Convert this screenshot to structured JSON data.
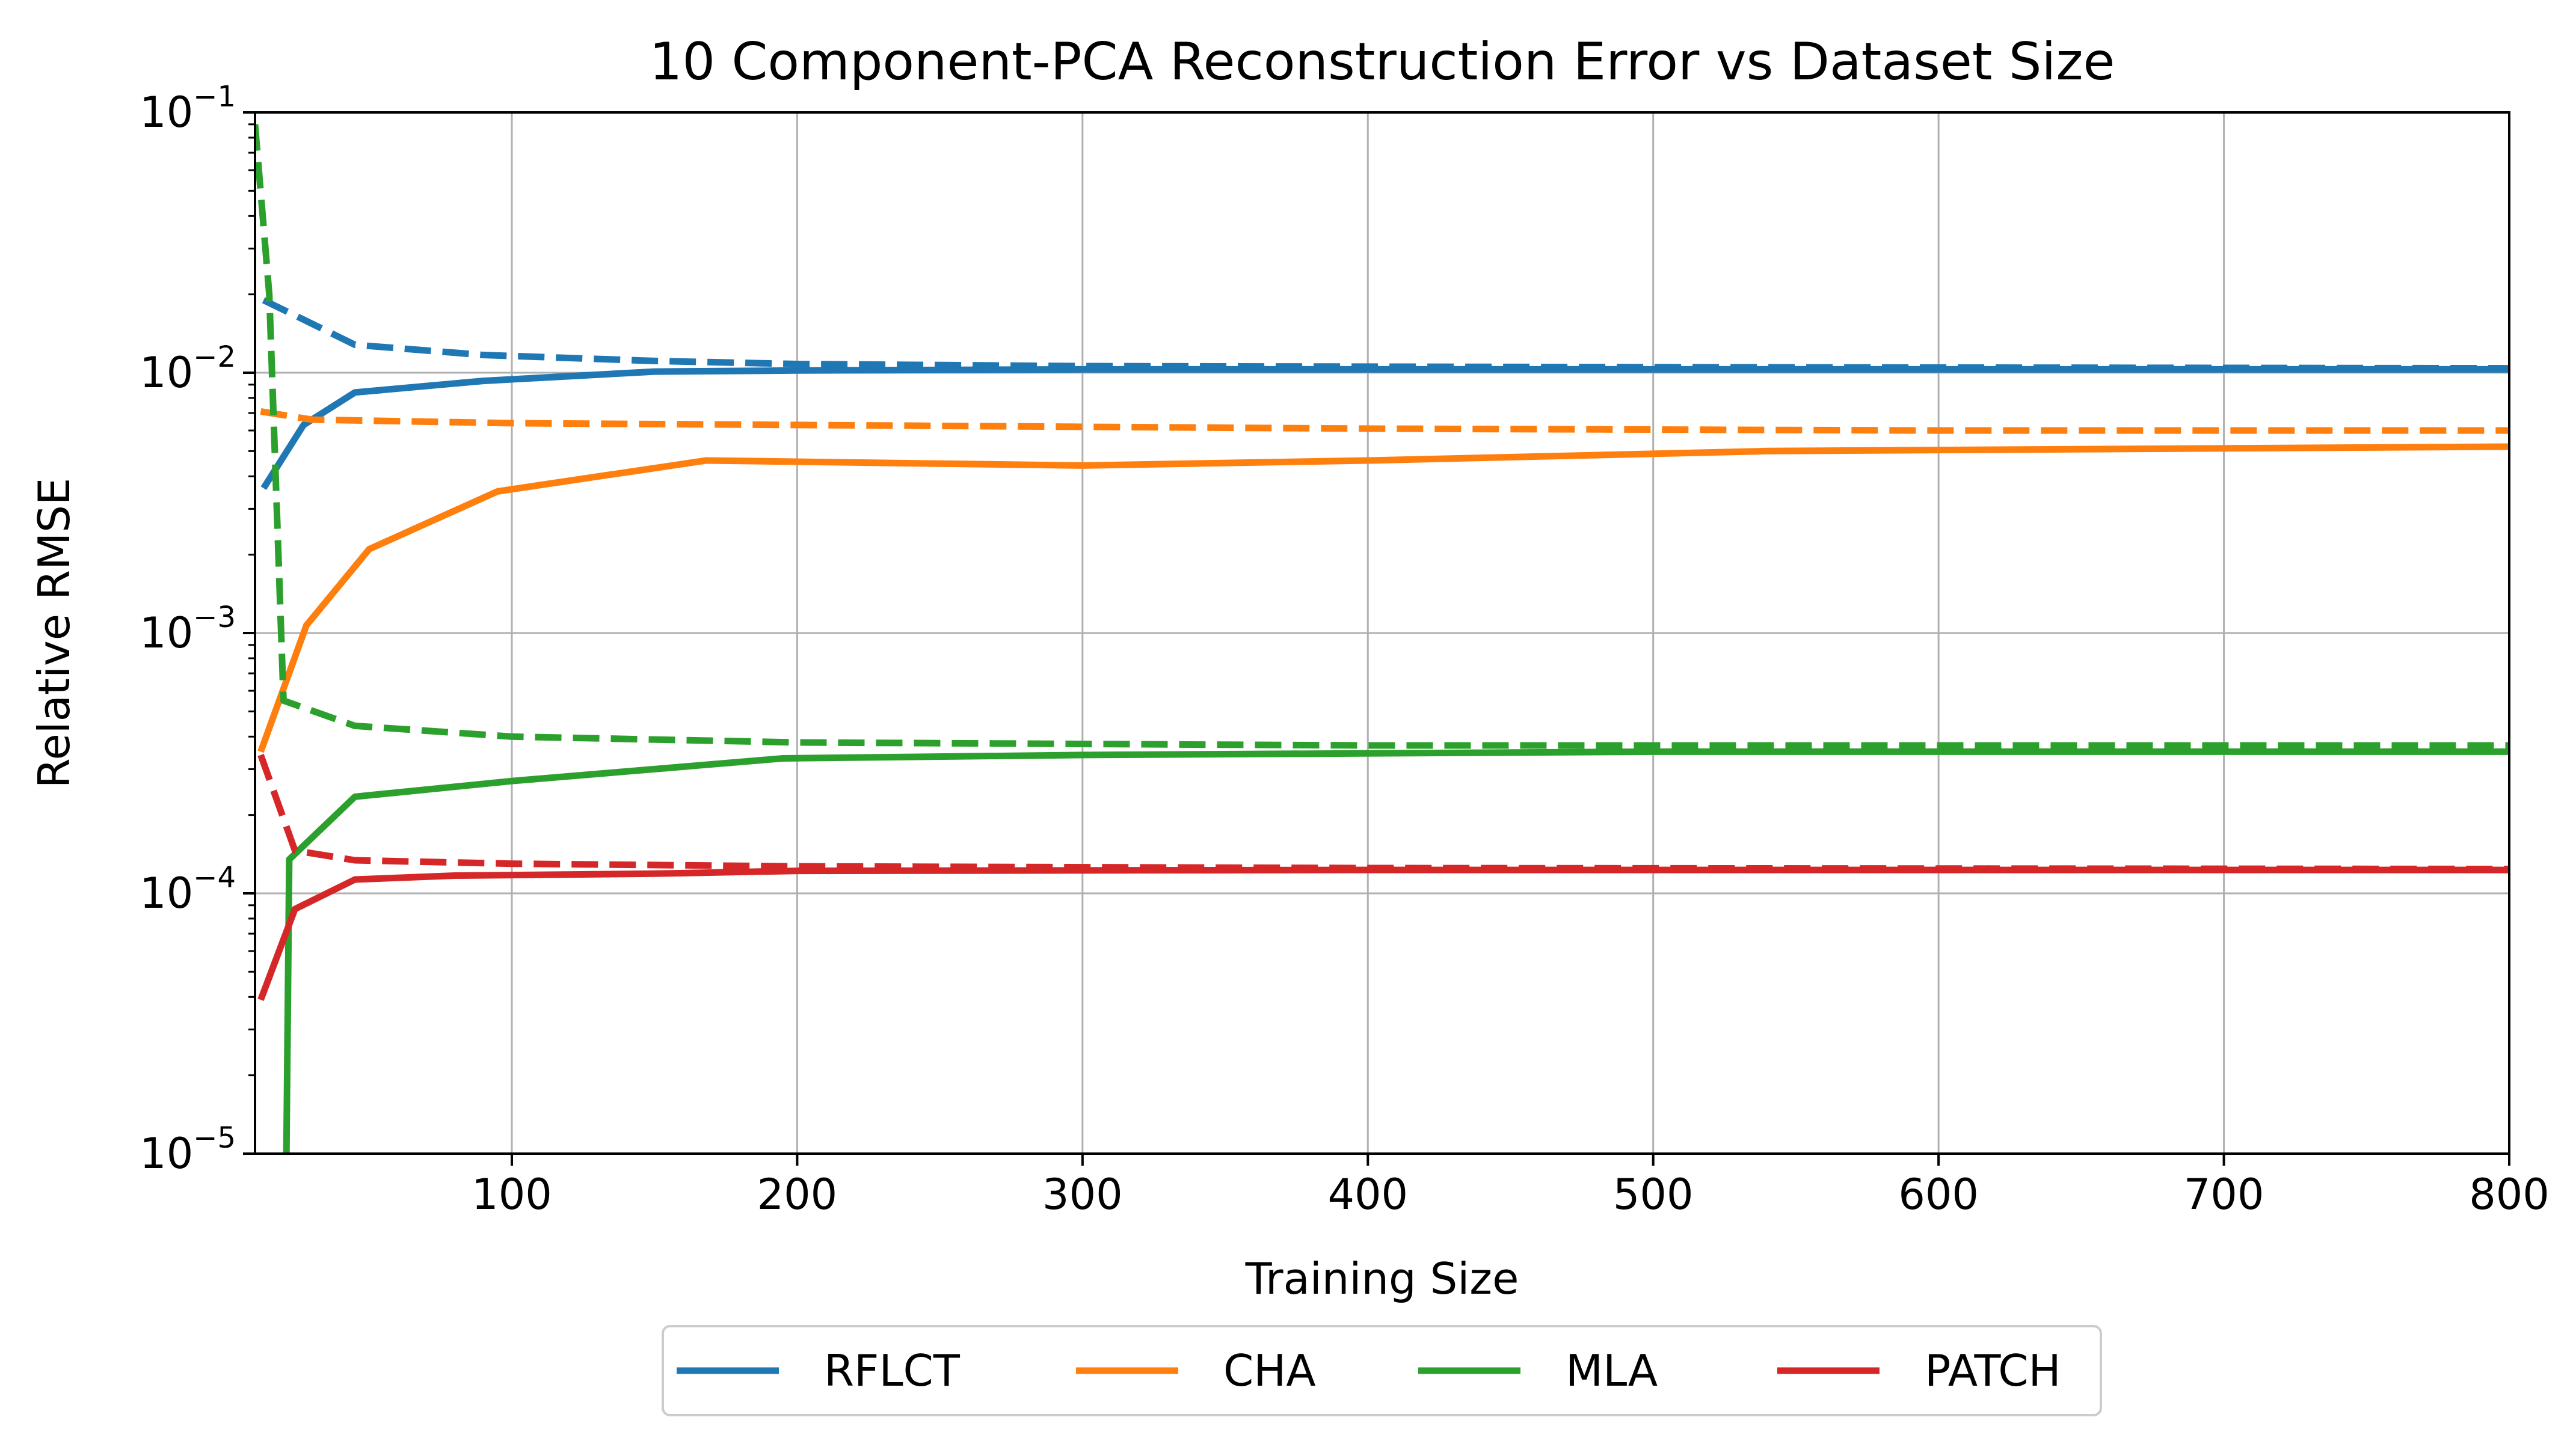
{
  "chart_data": {
    "type": "line",
    "title": "10 Component-PCA Reconstruction Error vs Dataset Size",
    "xlabel": "Training Size",
    "ylabel": "Relative RMSE",
    "xlim": [
      10,
      800
    ],
    "ylim": [
      1e-05,
      0.1
    ],
    "yscale": "log",
    "grid": true,
    "legend_position": "bottom-center-outside",
    "xticks": [
      100,
      200,
      300,
      400,
      500,
      600,
      700,
      800
    ],
    "yticks": [
      {
        "base": "10",
        "exp": "−5",
        "value": 1e-05
      },
      {
        "base": "10",
        "exp": "−4",
        "value": 0.0001
      },
      {
        "base": "10",
        "exp": "−3",
        "value": 0.001
      },
      {
        "base": "10",
        "exp": "−2",
        "value": 0.01
      },
      {
        "base": "10",
        "exp": "−1",
        "value": 0.1
      }
    ],
    "series": [
      {
        "name": "RFLCT",
        "color": "#1f77b4",
        "solid": [
          [
            13,
            0.0036
          ],
          [
            27,
            0.0063
          ],
          [
            45,
            0.0084
          ],
          [
            90,
            0.0093
          ],
          [
            150,
            0.0101
          ],
          [
            200,
            0.0102
          ],
          [
            300,
            0.0103
          ],
          [
            500,
            0.0103
          ],
          [
            800,
            0.0103
          ]
        ],
        "dashed": [
          [
            13,
            0.019
          ],
          [
            27,
            0.016
          ],
          [
            45,
            0.0128
          ],
          [
            90,
            0.0117
          ],
          [
            150,
            0.0111
          ],
          [
            200,
            0.0108
          ],
          [
            300,
            0.0106
          ],
          [
            500,
            0.0105
          ],
          [
            800,
            0.0104
          ]
        ]
      },
      {
        "name": "CHA",
        "color": "#ff7f0e",
        "solid": [
          [
            12,
            0.00035
          ],
          [
            28,
            0.00107
          ],
          [
            50,
            0.0021
          ],
          [
            95,
            0.0035
          ],
          [
            168,
            0.0046
          ],
          [
            300,
            0.0044
          ],
          [
            400,
            0.0046
          ],
          [
            540,
            0.005
          ],
          [
            800,
            0.0052
          ]
        ],
        "dashed": [
          [
            12,
            0.0071
          ],
          [
            30,
            0.0066
          ],
          [
            100,
            0.0064
          ],
          [
            200,
            0.0063
          ],
          [
            400,
            0.0061
          ],
          [
            600,
            0.006
          ],
          [
            800,
            0.006
          ]
        ]
      },
      {
        "name": "MLA",
        "color": "#2ca02c",
        "solid": [
          [
            21,
            1e-05
          ],
          [
            22,
            0.000135
          ],
          [
            45,
            0.000235
          ],
          [
            100,
            0.00027
          ],
          [
            195,
            0.00033
          ],
          [
            300,
            0.00034
          ],
          [
            500,
            0.00035
          ],
          [
            800,
            0.00035
          ]
        ],
        "dashed": [
          [
            10,
            0.09
          ],
          [
            15,
            0.02
          ],
          [
            20,
            0.00055
          ],
          [
            45,
            0.00044
          ],
          [
            100,
            0.0004
          ],
          [
            200,
            0.00038
          ],
          [
            400,
            0.00037
          ],
          [
            800,
            0.00037
          ]
        ]
      },
      {
        "name": "PATCH",
        "color": "#d62728",
        "solid": [
          [
            12,
            3.9e-05
          ],
          [
            24,
            8.7e-05
          ],
          [
            45,
            0.000113
          ],
          [
            80,
            0.000117
          ],
          [
            150,
            0.000119
          ],
          [
            200,
            0.000122
          ],
          [
            400,
            0.000123
          ],
          [
            800,
            0.000123
          ]
        ],
        "dashed": [
          [
            12,
            0.00034
          ],
          [
            24,
            0.000146
          ],
          [
            45,
            0.000134
          ],
          [
            100,
            0.00013
          ],
          [
            200,
            0.000127
          ],
          [
            400,
            0.000125
          ],
          [
            800,
            0.000124
          ]
        ]
      }
    ]
  }
}
